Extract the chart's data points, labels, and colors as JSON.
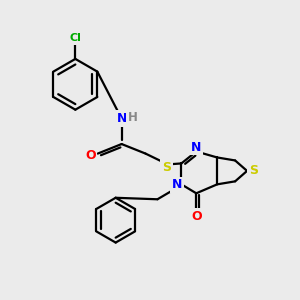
{
  "bg_color": "#ebebeb",
  "atom_colors": {
    "N": "#0000ff",
    "O": "#ff0000",
    "S": "#cccc00",
    "Cl": "#00aa00",
    "H": "#888888",
    "C": "#000000"
  }
}
